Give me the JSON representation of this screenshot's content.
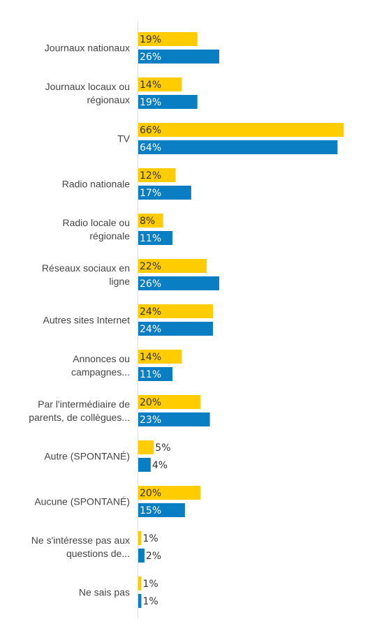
{
  "chart_data": {
    "type": "bar",
    "orientation": "horizontal",
    "title": "",
    "xlabel": "",
    "ylabel": "",
    "grid": false,
    "legend": false,
    "xlim": [
      0,
      66
    ],
    "categories": [
      [
        "Journaux nationaux"
      ],
      [
        "Journaux locaux ou",
        "régionaux"
      ],
      [
        "TV"
      ],
      [
        "Radio nationale"
      ],
      [
        "Radio locale ou",
        "régionale"
      ],
      [
        "Réseaux sociaux en",
        "ligne"
      ],
      [
        "Autres sites Internet"
      ],
      [
        "Annonces ou",
        "campagnes..."
      ],
      [
        "Par l'intermédiaire de",
        "parents, de collègues..."
      ],
      [
        "Autre (SPONTANÉ)"
      ],
      [
        "Aucune (SPONTANÉ)"
      ],
      [
        "Ne s'intéresse pas aux",
        "questions de..."
      ],
      [
        "Ne sais pas"
      ]
    ],
    "series": [
      {
        "color": "#FFCC00",
        "values": [
          19,
          14,
          66,
          12,
          8,
          22,
          24,
          14,
          20,
          5,
          20,
          1,
          1
        ],
        "labels": [
          "19%",
          "14%",
          "66%",
          "12%",
          "8%",
          "22%",
          "24%",
          "14%",
          "20%",
          "5%",
          "20%",
          "1%",
          "1%"
        ]
      },
      {
        "color": "#0A7EC2",
        "values": [
          26,
          19,
          64,
          17,
          11,
          26,
          24,
          11,
          23,
          4,
          15,
          2,
          1
        ],
        "labels": [
          "26%",
          "19%",
          "64%",
          "17%",
          "11%",
          "26%",
          "24%",
          "11%",
          "23%",
          "4%",
          "15%",
          "2%",
          "1%"
        ]
      }
    ]
  }
}
